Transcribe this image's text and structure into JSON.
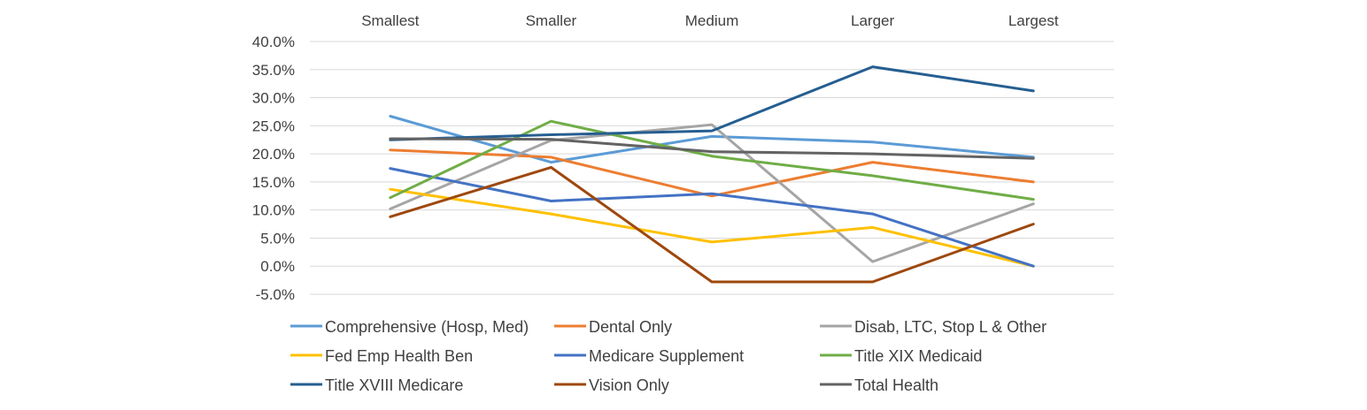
{
  "chart_data": {
    "type": "line",
    "categories": [
      "Smallest",
      "Smaller",
      "Medium",
      "Larger",
      "Largest"
    ],
    "ylim": [
      -5,
      40
    ],
    "yticks": [
      "40.0%",
      "35.0%",
      "30.0%",
      "25.0%",
      "20.0%",
      "15.0%",
      "10.0%",
      "5.0%",
      "0.0%",
      "-5.0%"
    ],
    "grid": "horizontal",
    "legend_position": "bottom",
    "series": [
      {
        "name": "Comprehensive (Hosp, Med)",
        "color": "#5B9BD5",
        "values": [
          26.7,
          18.5,
          23.1,
          22.1,
          19.4
        ]
      },
      {
        "name": "Dental Only",
        "color": "#ED7D31",
        "values": [
          20.7,
          19.4,
          12.5,
          18.5,
          15.0
        ]
      },
      {
        "name": "Disab, LTC, Stop L & Other",
        "color": "#A5A5A5",
        "values": [
          10.2,
          22.4,
          25.2,
          0.8,
          11.1
        ]
      },
      {
        "name": "Fed Emp Health Ben",
        "color": "#FFC000",
        "values": [
          13.7,
          9.3,
          4.3,
          6.9,
          0.0
        ]
      },
      {
        "name": "Medicare Supplement",
        "color": "#4472C4",
        "values": [
          17.4,
          11.6,
          12.9,
          9.3,
          0.0
        ]
      },
      {
        "name": "Title XIX Medicaid",
        "color": "#70AD47",
        "values": [
          12.2,
          25.8,
          19.6,
          16.1,
          11.9
        ]
      },
      {
        "name": "Title XVIII Medicare",
        "color": "#255E91",
        "values": [
          22.5,
          23.4,
          24.1,
          35.5,
          31.2
        ]
      },
      {
        "name": "Vision Only",
        "color": "#9E480E",
        "values": [
          8.8,
          17.6,
          -2.8,
          -2.8,
          7.5
        ]
      },
      {
        "name": "Total Health",
        "color": "#636363",
        "values": [
          22.7,
          22.6,
          20.4,
          20.0,
          19.2
        ]
      }
    ]
  }
}
